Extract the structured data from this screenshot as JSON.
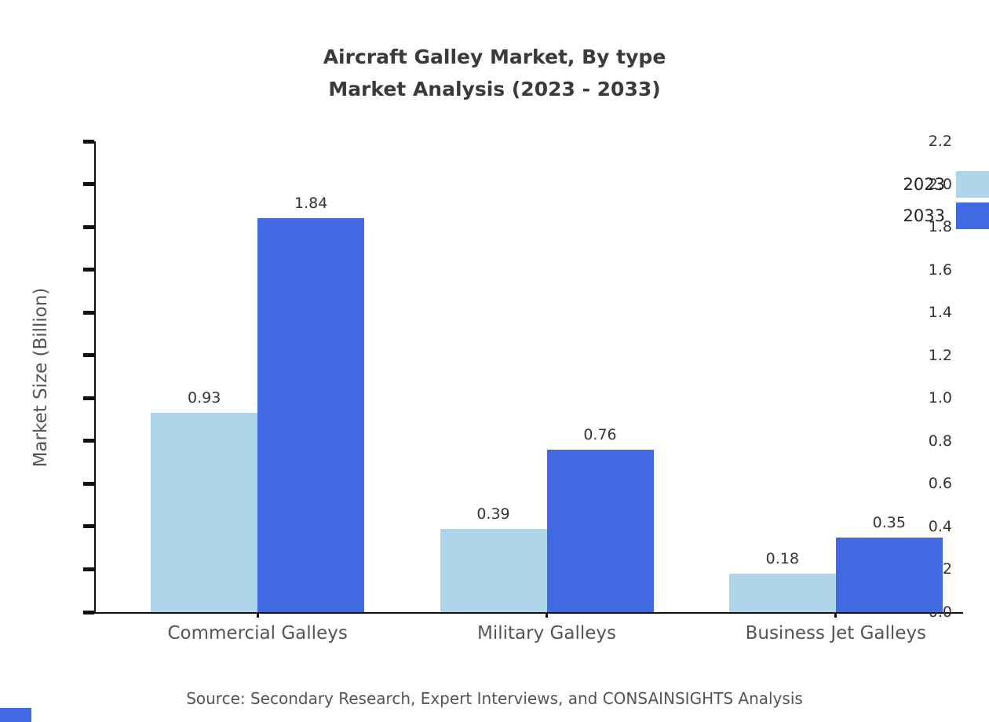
{
  "title": {
    "line1": "Aircraft Galley Market, By type",
    "line2": "Market Analysis (2023 - 2033)"
  },
  "source": "Source: Secondary Research, Expert Interviews, and CONSAINSIGHTS Analysis",
  "chart_data": {
    "type": "bar",
    "categories": [
      "Commercial Galleys",
      "Military Galleys",
      "Business Jet Galleys"
    ],
    "series": [
      {
        "name": "2023",
        "color": "#aed6e8",
        "values": [
          0.93,
          0.39,
          0.18
        ]
      },
      {
        "name": "2033",
        "color": "#4169e1",
        "values": [
          1.84,
          0.76,
          0.35
        ]
      }
    ],
    "title": "Aircraft Galley Market, By type — Market Analysis (2023 - 2033)",
    "xlabel": "",
    "ylabel": "Market Size (Billion)",
    "ylim": [
      0,
      2.2
    ],
    "ytick_step": 0.2,
    "grid": false,
    "legend_position": "top-right",
    "value_labels": true
  }
}
